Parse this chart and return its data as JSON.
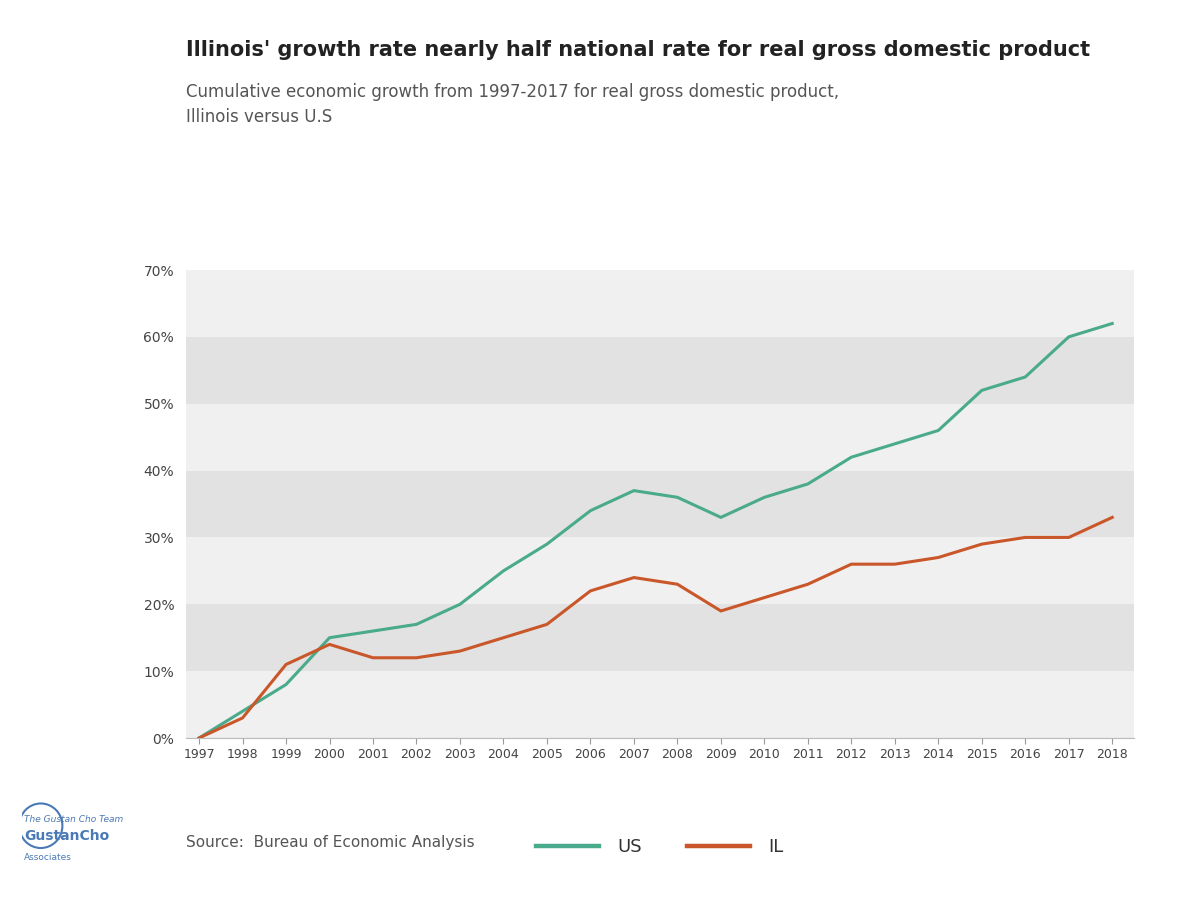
{
  "title": "Illinois' growth rate nearly half national rate for real gross domestic product",
  "subtitle": "Cumulative economic growth from 1997-2017 for real gross domestic product,\nIllinois versus U.S",
  "source": "Source:  Bureau of Economic Analysis",
  "years": [
    1997,
    1998,
    1999,
    2000,
    2001,
    2002,
    2003,
    2004,
    2005,
    2006,
    2007,
    2008,
    2009,
    2010,
    2011,
    2012,
    2013,
    2014,
    2015,
    2016,
    2017,
    2018
  ],
  "us_values": [
    0,
    4,
    8,
    15,
    16,
    17,
    20,
    25,
    29,
    34,
    37,
    36,
    33,
    36,
    38,
    42,
    44,
    46,
    52,
    54,
    60,
    62
  ],
  "il_values": [
    0,
    3,
    11,
    14,
    12,
    12,
    13,
    15,
    17,
    22,
    24,
    23,
    19,
    21,
    23,
    26,
    26,
    27,
    29,
    30,
    30,
    33
  ],
  "us_color": "#4aaa8c",
  "il_color": "#c9572a",
  "bg_color": "#ffffff",
  "plot_bg_light": "#f0f0f0",
  "plot_bg_dark": "#e2e2e2",
  "ylim": [
    0,
    70
  ],
  "yticks": [
    0,
    10,
    20,
    30,
    40,
    50,
    60,
    70
  ],
  "title_fontsize": 15,
  "subtitle_fontsize": 12,
  "axis_fontsize": 10,
  "legend_fontsize": 13,
  "line_width": 2.2,
  "logo_text_line1": "The Gustan Cho Team",
  "logo_text_line2": "GustanCho",
  "logo_text_line3": "Associates",
  "logo_color": "#4a7ab5"
}
